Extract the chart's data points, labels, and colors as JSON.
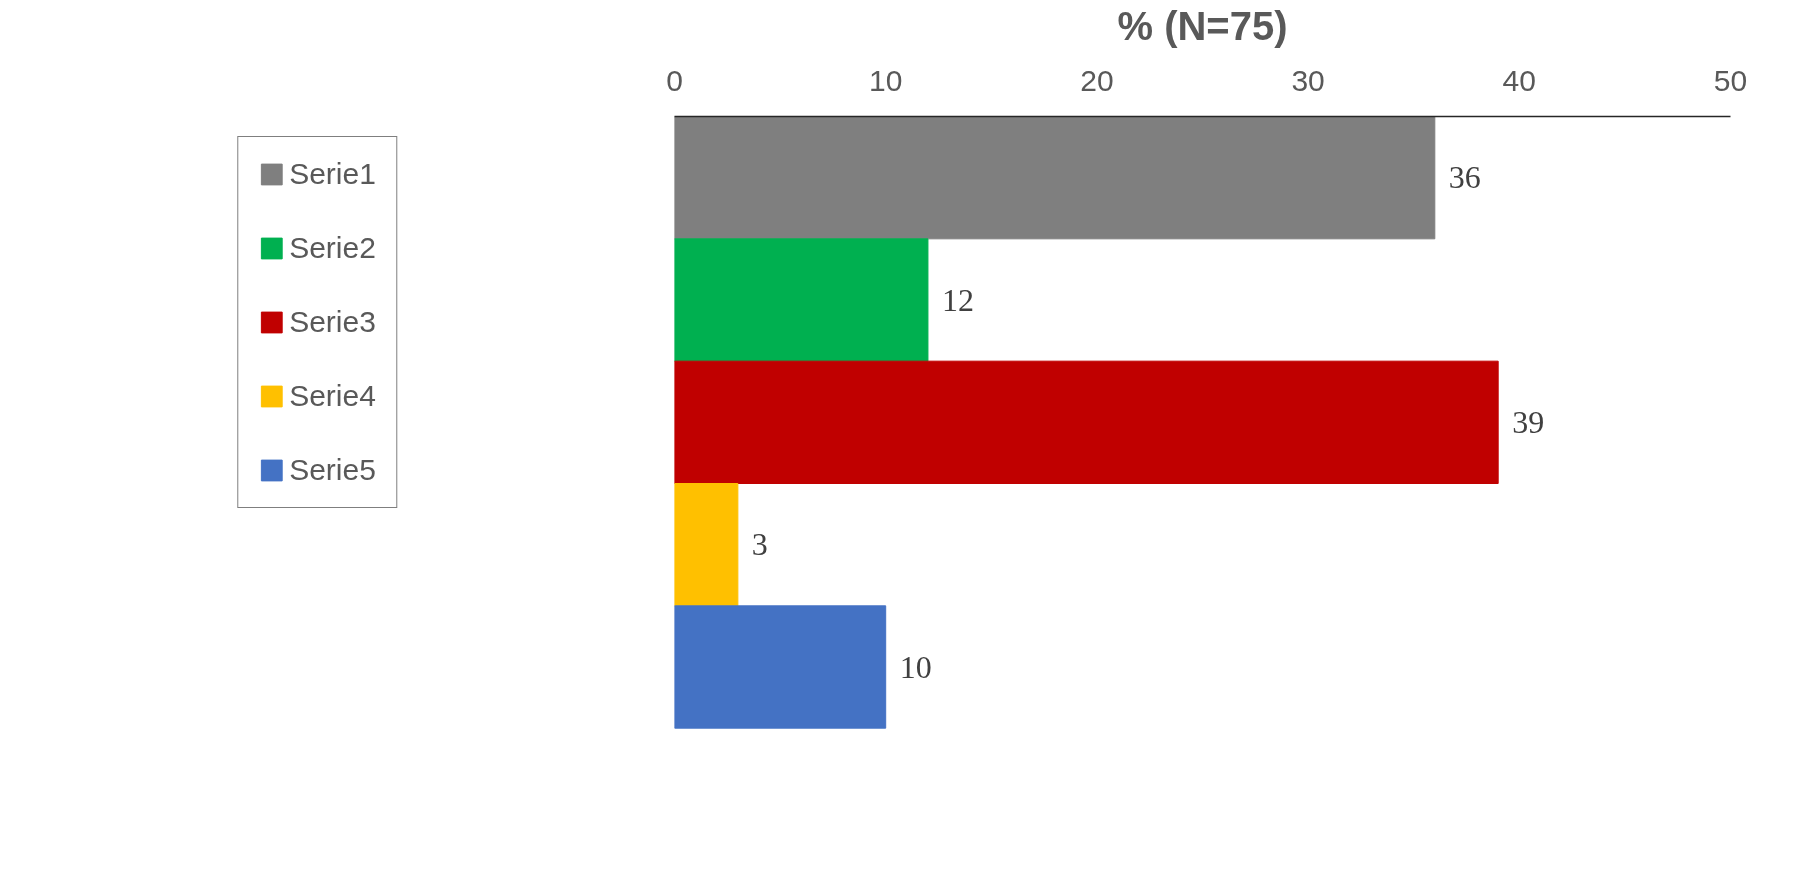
{
  "chart_data": {
    "type": "bar",
    "orientation": "horizontal",
    "xlabel": "% (N=75)",
    "categories": [
      null
    ],
    "series": [
      {
        "name": "Serie1",
        "color": "#7f7f7f",
        "values": [
          36
        ]
      },
      {
        "name": "Serie2",
        "color": "#00b050",
        "values": [
          12
        ]
      },
      {
        "name": "Serie3",
        "color": "#c00000",
        "values": [
          39
        ]
      },
      {
        "name": "Serie4",
        "color": "#ffc000",
        "values": [
          3
        ]
      },
      {
        "name": "Serie5",
        "color": "#4472c4",
        "values": [
          10
        ]
      }
    ],
    "xlim": [
      0,
      50
    ],
    "xticks": [
      0,
      10,
      20,
      30,
      40,
      50
    ],
    "data_labels": true,
    "legend": "left",
    "grid": false,
    "tick_labels": "x"
  }
}
